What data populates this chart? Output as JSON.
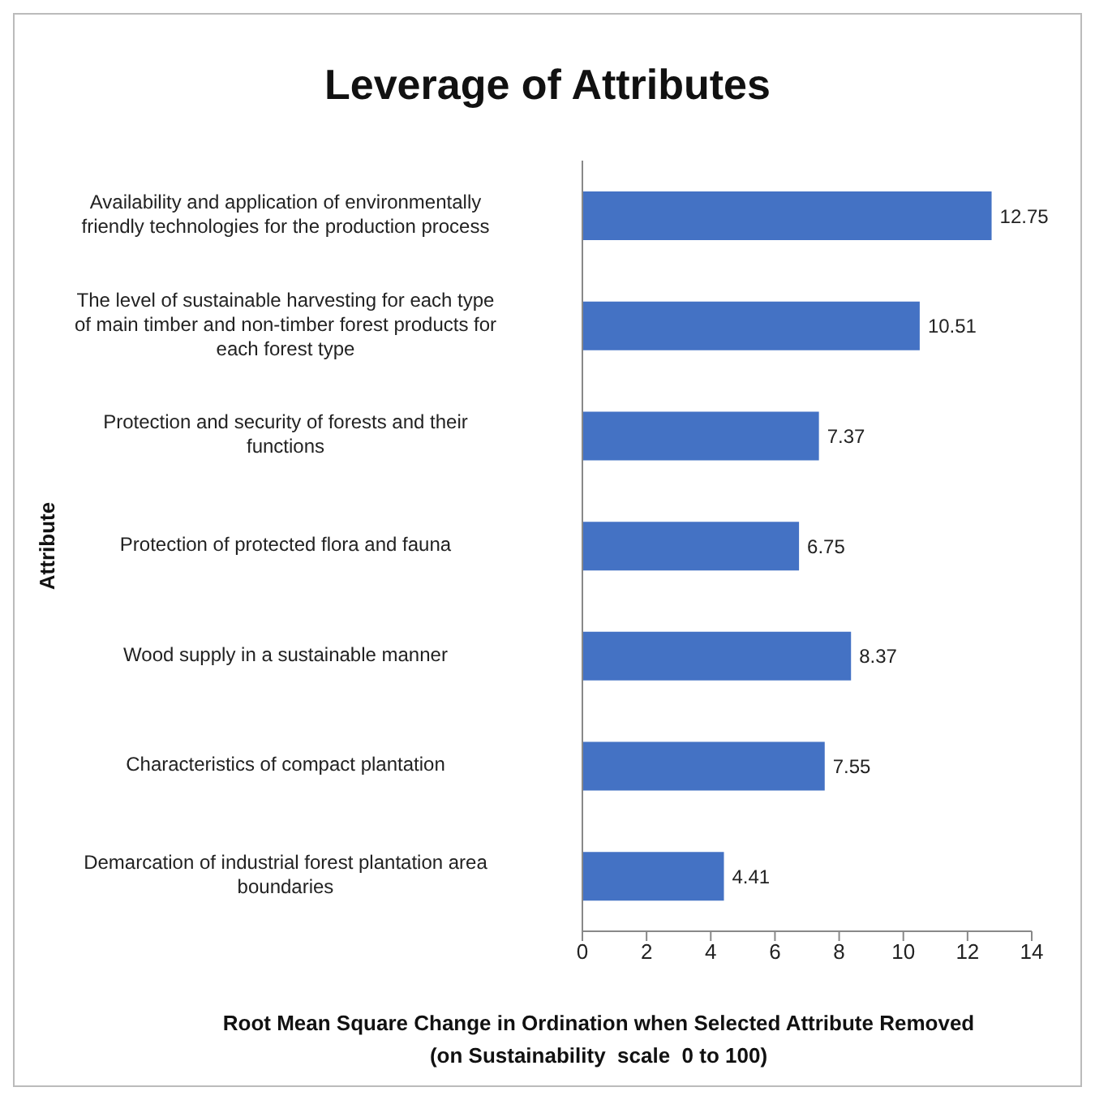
{
  "chart_data": {
    "type": "bar",
    "orientation": "horizontal",
    "title": "Leverage of Attributes",
    "xlabel": "Root Mean Square Change in Ordination when Selected Attribute Removed\n(on Sustainability  scale  0 to 100)",
    "ylabel": "Attribute",
    "categories": [
      "Availability and application of environmentally friendly technologies for the production process",
      "The level of sustainable harvesting for each type of main timber and non-timber forest products for each forest type",
      "Protection and security of forests and their functions",
      "Protection of protected flora and fauna",
      "Wood supply in a sustainable manner",
      "Characteristics of compact plantation",
      "Demarcation of industrial forest plantation area boundaries"
    ],
    "values": [
      12.75,
      10.51,
      7.37,
      6.75,
      8.37,
      7.55,
      4.41
    ],
    "color": "#4472c4",
    "xlim": [
      0,
      14
    ],
    "xticks": [
      0,
      2,
      4,
      6,
      8,
      10,
      12,
      14
    ],
    "data_labels": true
  }
}
